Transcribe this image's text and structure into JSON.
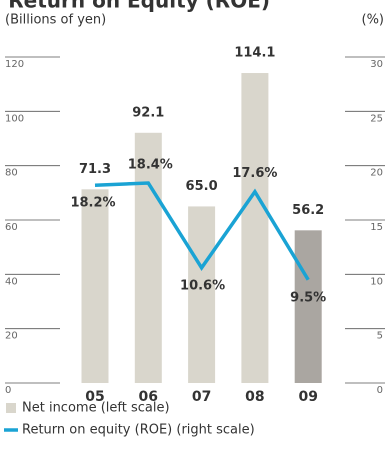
{
  "chart_data": {
    "type": "bar-line",
    "title": "Return on Equity (ROE)",
    "y_label": "(Billions of yen)",
    "y2_label": "(%)",
    "categories": [
      "05",
      "06",
      "07",
      "08",
      "09"
    ],
    "series": [
      {
        "name": "Net income (left scale)",
        "type": "bar",
        "color": "#d9d6cc",
        "highlight_color": "#aaa6a1",
        "values": [
          71.3,
          92.1,
          65.0,
          114.1,
          56.2
        ],
        "value_labels": [
          "71.3",
          "92.1",
          "65.0",
          "114.1",
          "56.2"
        ]
      },
      {
        "name": "Return on equity (ROE) (right scale)",
        "type": "line",
        "axis": "y2",
        "color": "#1aa3d4",
        "values": [
          18.2,
          18.4,
          10.6,
          17.6,
          9.5
        ],
        "value_labels": [
          "18.2%",
          "18.4%",
          "10.6%",
          "17.6%",
          "9.5%"
        ]
      }
    ],
    "ylim": [
      0,
      120
    ],
    "yticks": [
      0,
      20,
      40,
      60,
      80,
      100,
      120
    ],
    "y2lim": [
      0,
      30
    ],
    "y2ticks": [
      0,
      5,
      10,
      15,
      20,
      25,
      30
    ]
  }
}
